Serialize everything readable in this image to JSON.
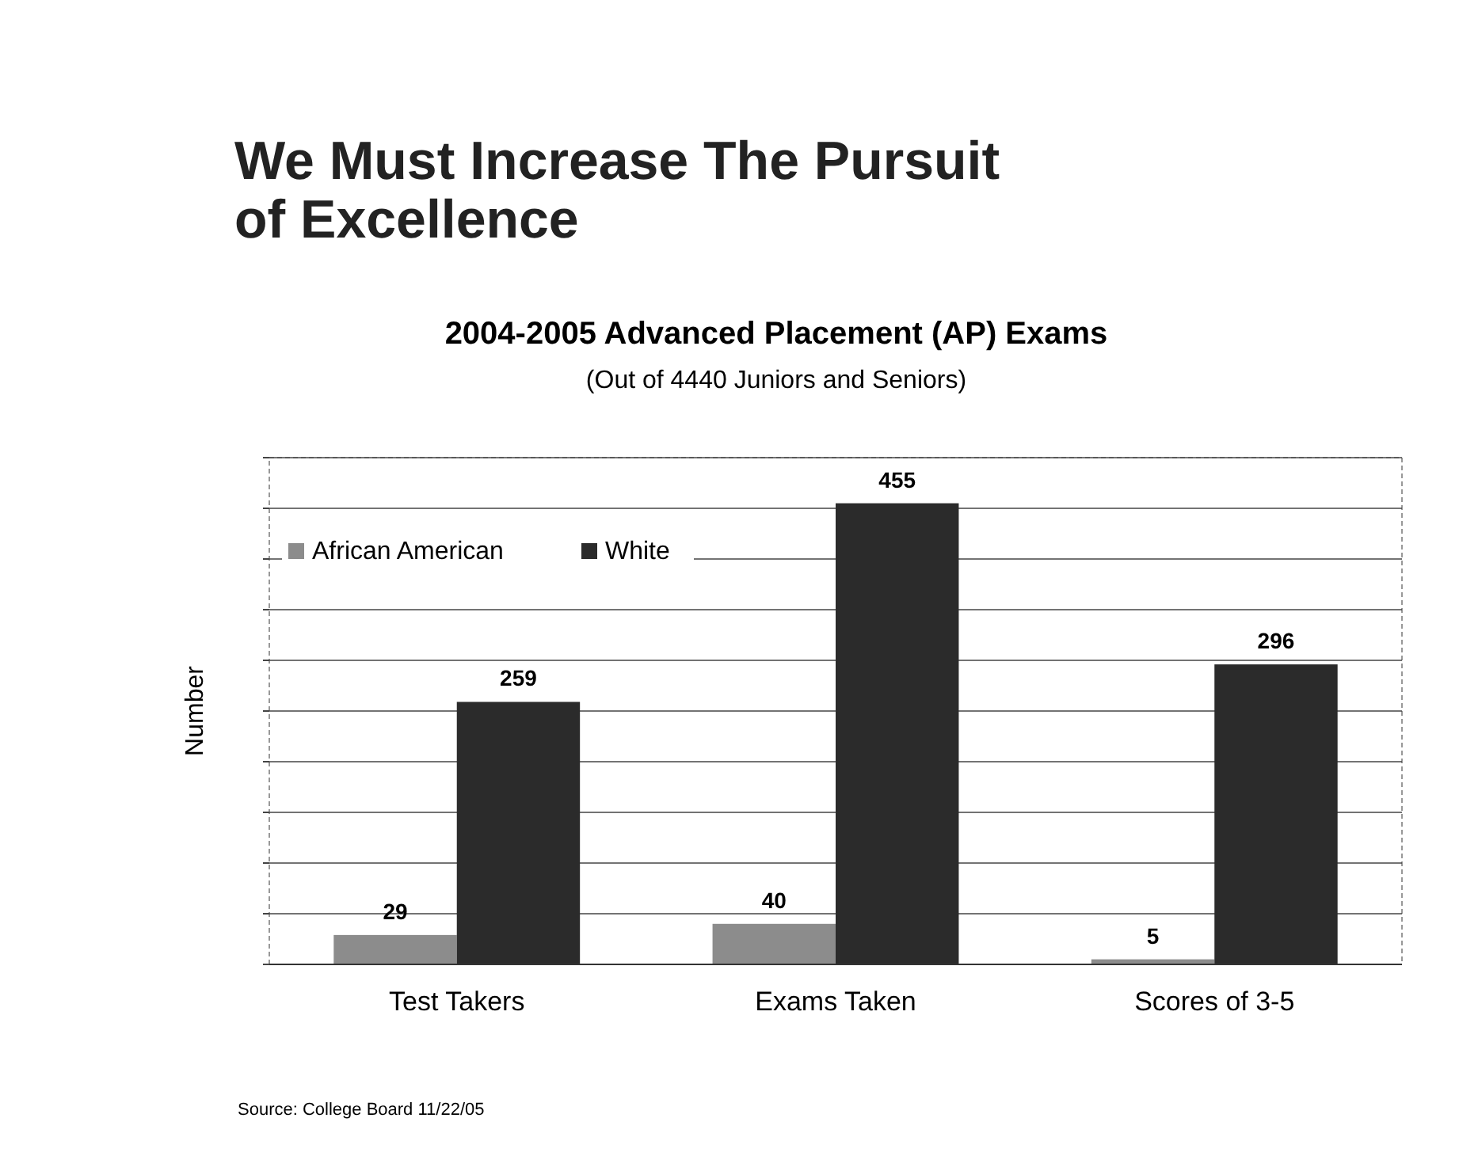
{
  "chart_data": {
    "type": "bar",
    "title": "2004-2005 Advanced Placement (AP) Exams",
    "subtitle": "(Out of 4440 Juniors and Seniors)",
    "ylabel": "Number",
    "annotations": [
      "We Must Increase The Pursuit of Excellence",
      "Source: College Board 11/22/05"
    ],
    "categories": [
      "Test Takers",
      "Exams Taken",
      "Scores of 3-5"
    ],
    "series": [
      {
        "name": "African American",
        "color": "#8c8c8c",
        "values": [
          29,
          40,
          5
        ]
      },
      {
        "name": "White",
        "color": "#2b2b2b",
        "values": [
          259,
          455,
          296
        ]
      }
    ],
    "ylim": [
      0,
      500
    ],
    "yticks": [
      {
        "value": 0,
        "label": null
      },
      {
        "value": 50,
        "label": null
      },
      {
        "value": 100,
        "label": null
      },
      {
        "value": 150,
        "label": null
      },
      {
        "value": 200,
        "label": null
      },
      {
        "value": 250,
        "label": null
      },
      {
        "value": 300,
        "label": null
      },
      {
        "value": 350,
        "label": null
      },
      {
        "value": 400,
        "label": null
      },
      {
        "value": 450,
        "label": null
      },
      {
        "value": 500,
        "label": null
      }
    ],
    "tick_labels": "x",
    "grid": "y",
    "legend": "top left",
    "data_labels": true
  }
}
